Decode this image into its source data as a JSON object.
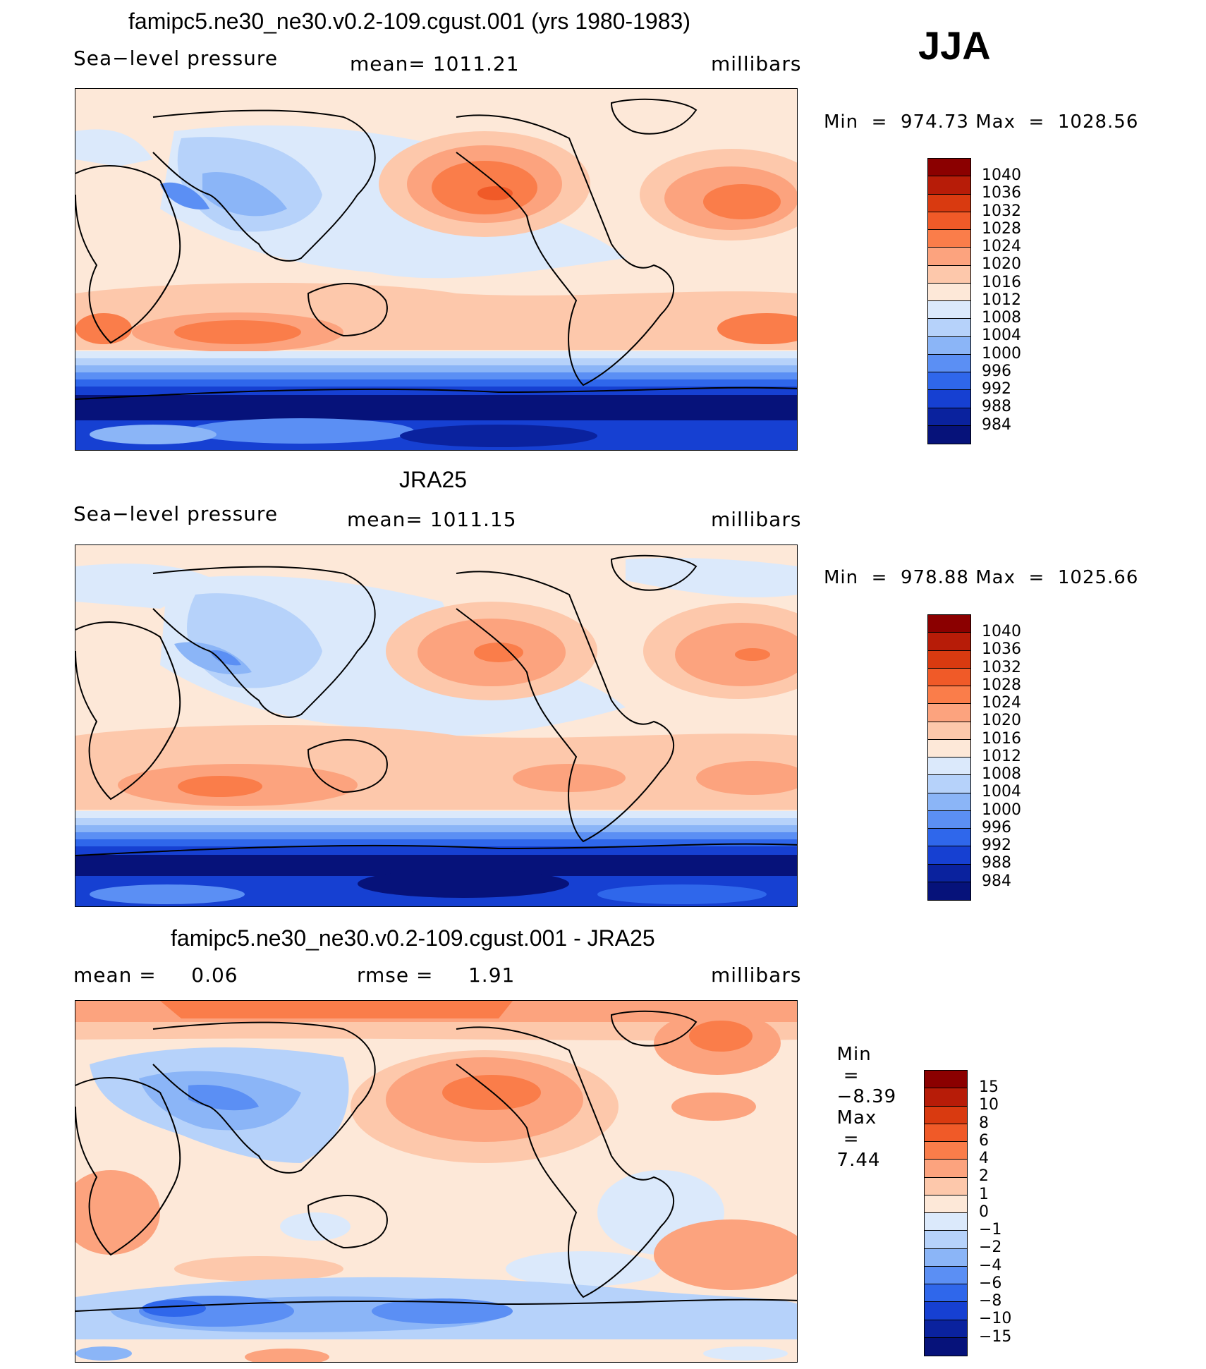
{
  "season": "JJA",
  "panels": [
    {
      "title": "famipc5.ne30_ne30.v0.2-109.cgust.001 (yrs 1980-1983)",
      "left": "Sea−level pressure",
      "center": "mean=  1011.21",
      "right": "millibars",
      "min_label": "Min",
      "min_value": "974.73",
      "max_label": "Max",
      "max_value": "1028.56",
      "legend": [
        "1040",
        "1036",
        "1032",
        "1028",
        "1024",
        "1020",
        "1016",
        "1012",
        "1008",
        "1004",
        "1000",
        "996",
        "992",
        "988",
        "984"
      ]
    },
    {
      "title": "JRA25",
      "left": "Sea−level pressure",
      "center": "mean=  1011.15",
      "right": "millibars",
      "min_label": "Min",
      "min_value": "978.88",
      "max_label": "Max",
      "max_value": "1025.66",
      "legend": [
        "1040",
        "1036",
        "1032",
        "1028",
        "1024",
        "1020",
        "1016",
        "1012",
        "1008",
        "1004",
        "1000",
        "996",
        "992",
        "988",
        "984"
      ]
    },
    {
      "title": "famipc5.ne30_ne30.v0.2-109.cgust.001 - JRA25",
      "left": "mean =     0.06",
      "center": "rmse =     1.91",
      "right": "millibars",
      "min_label": "Min",
      "min_value": "−8.39",
      "max_label": "Max",
      "max_value": "7.44",
      "legend": [
        "15",
        "10",
        "8",
        "6",
        "4",
        "2",
        "1",
        "0",
        "−1",
        "−2",
        "−4",
        "−6",
        "−8",
        "−10",
        "−15"
      ]
    }
  ],
  "colors": {
    "scale": [
      "#8b0000",
      "#b71c08",
      "#d93a10",
      "#f05a28",
      "#fa7d4a",
      "#fca37e",
      "#fdc8ab",
      "#fde8d8",
      "#dbe9fb",
      "#b6d2fa",
      "#8bb5f7",
      "#5b8ff4",
      "#2f67eb",
      "#1640d2",
      "#0a229e",
      "#06127a"
    ]
  }
}
